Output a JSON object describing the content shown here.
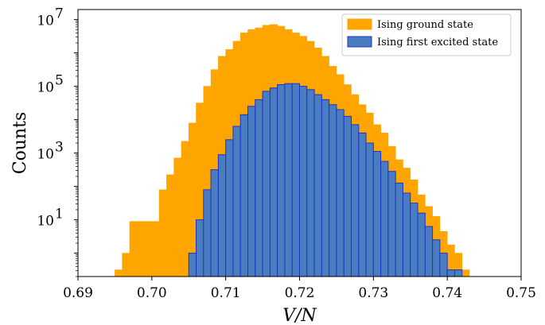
{
  "chart_data": {
    "type": "bar",
    "title": "",
    "xlabel": "V/N",
    "ylabel": "Counts",
    "xlim": [
      0.69,
      0.75
    ],
    "ylim_log10": [
      -0.7,
      7.3
    ],
    "y_scale": "log",
    "grid": false,
    "legend_placement": "top-right",
    "x_ticks": [
      "0.69",
      "0.70",
      "0.71",
      "0.72",
      "0.73",
      "0.74",
      "0.75"
    ],
    "y_ticks": [
      {
        "base": "10",
        "exp": "1"
      },
      {
        "base": "10",
        "exp": "3"
      },
      {
        "base": "10",
        "exp": "5"
      },
      {
        "base": "10",
        "exp": "7"
      }
    ],
    "bin_width": 0.001,
    "series": [
      {
        "name": "Ising ground state",
        "color": "#FFA500",
        "edge_color": "#FFA500",
        "bin_start": 0.695,
        "log10_counts": [
          -0.5,
          0.0,
          0.95,
          0.95,
          0.95,
          0.95,
          1.9,
          2.35,
          2.85,
          3.35,
          3.9,
          4.5,
          5.0,
          5.5,
          5.9,
          6.1,
          6.35,
          6.6,
          6.7,
          6.75,
          6.83,
          6.85,
          6.8,
          6.7,
          6.6,
          6.5,
          6.35,
          6.15,
          5.9,
          5.6,
          5.35,
          5.05,
          4.75,
          4.45,
          4.2,
          3.85,
          3.6,
          3.2,
          2.8,
          2.55,
          2.2,
          1.75,
          1.4,
          1.1,
          0.65,
          0.25,
          0.0,
          -0.5
        ]
      },
      {
        "name": "Ising first excited state",
        "color": "#4A7DC0",
        "edge_color": "#1E32C8",
        "bin_start": 0.705,
        "log10_counts": [
          0.0,
          1.0,
          1.9,
          2.5,
          2.95,
          3.4,
          3.8,
          4.15,
          4.4,
          4.6,
          4.85,
          4.95,
          5.05,
          5.08,
          5.08,
          5.0,
          4.9,
          4.75,
          4.6,
          4.45,
          4.3,
          4.1,
          3.85,
          3.6,
          3.3,
          3.05,
          2.75,
          2.45,
          2.1,
          1.8,
          1.5,
          1.2,
          0.8,
          0.4,
          0.0,
          -0.5,
          -0.5
        ]
      }
    ]
  }
}
